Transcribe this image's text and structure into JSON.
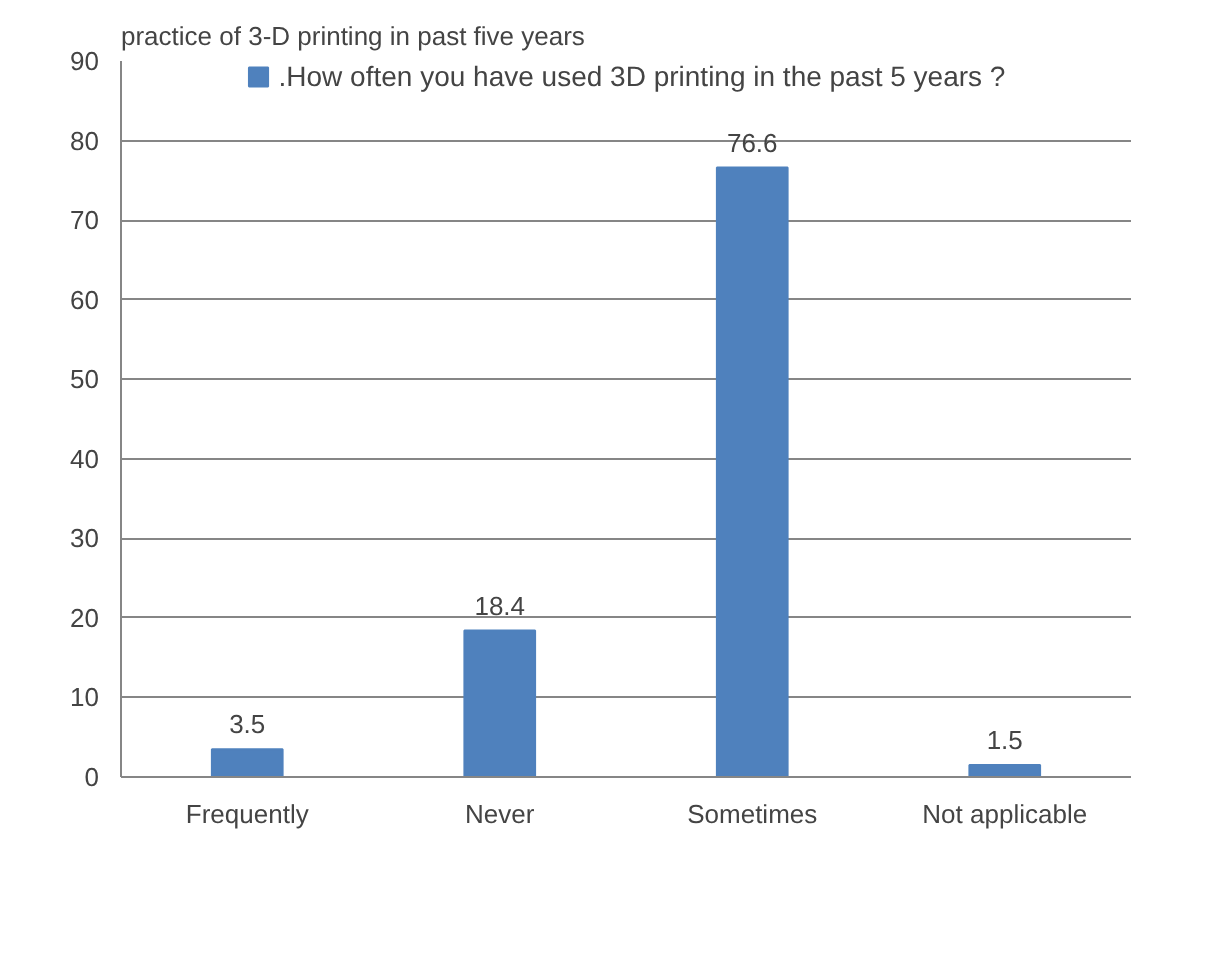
{
  "chart_data": {
    "type": "bar",
    "title": "practice of 3-D printing in past five years",
    "categories": [
      "Frequently",
      "Never",
      "Sometimes",
      "Not applicable"
    ],
    "series": [
      {
        "name": ".How often you have used 3D printing in the past 5 years ?",
        "color": "#4f81bd",
        "values": [
          3.5,
          18.4,
          76.6,
          1.5
        ]
      }
    ],
    "ylim": [
      0,
      90
    ],
    "yticks": [
      0,
      10,
      20,
      30,
      40,
      50,
      60,
      70,
      80,
      90
    ],
    "grid": "y",
    "legend": "top",
    "data_labels": true
  }
}
